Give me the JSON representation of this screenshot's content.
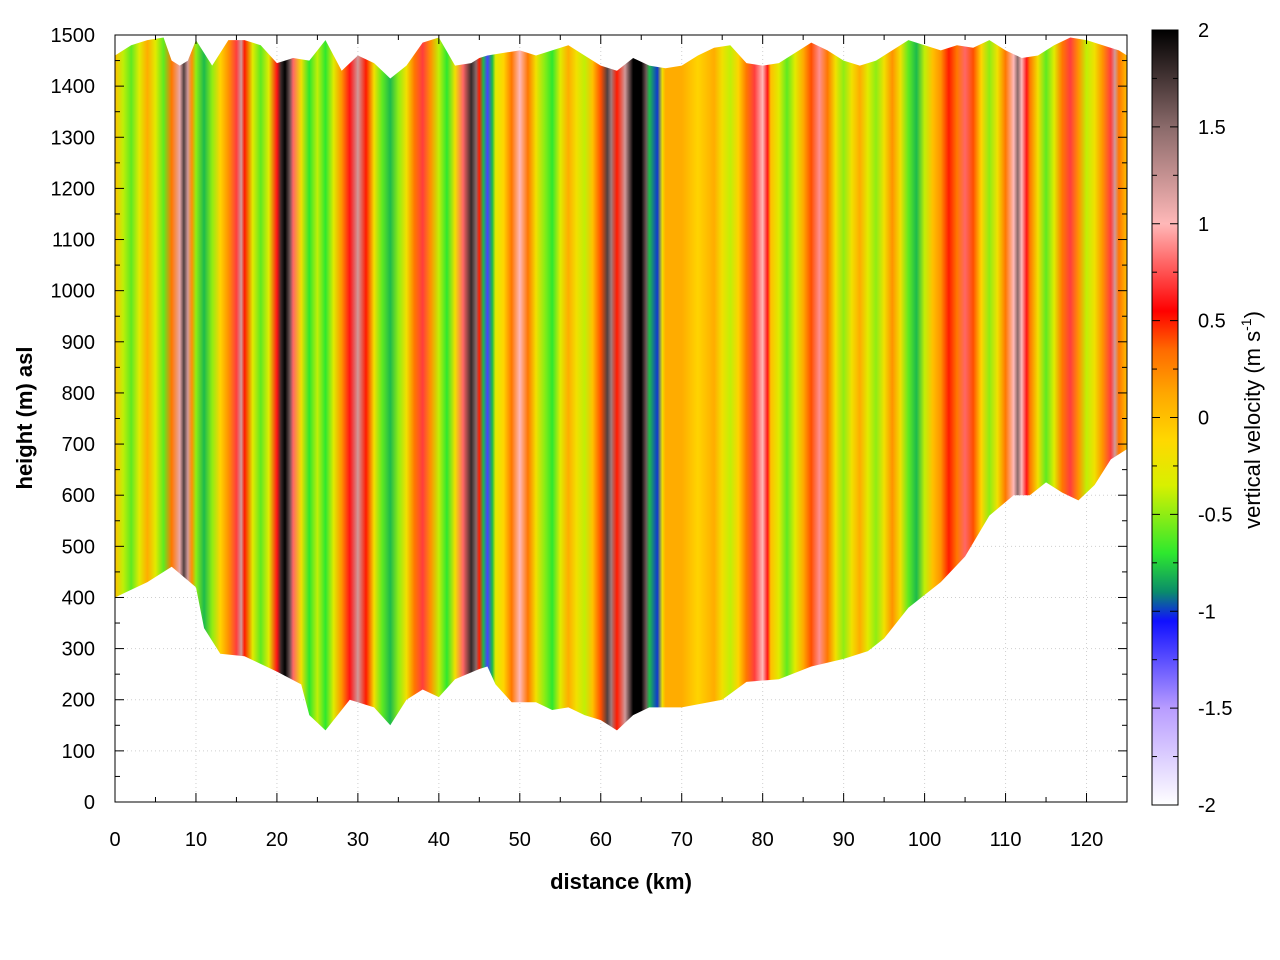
{
  "chart_data": {
    "type": "heatmap",
    "title": "",
    "xlabel": "distance (km)",
    "ylabel": "height (m) asl",
    "xlim": [
      0,
      125
    ],
    "ylim": [
      0,
      1500
    ],
    "x_ticks": [
      "0",
      "10",
      "20",
      "30",
      "40",
      "50",
      "60",
      "70",
      "80",
      "90",
      "100",
      "110",
      "120"
    ],
    "y_ticks": [
      "0",
      "100",
      "200",
      "300",
      "400",
      "500",
      "600",
      "700",
      "800",
      "900",
      "1000",
      "1100",
      "1200",
      "1300",
      "1400",
      "1500"
    ],
    "grid": true,
    "colorbar": {
      "label_main": "vertical velocity (m s",
      "label_sup": "-1",
      "label_close": ")",
      "range": [
        -2,
        2
      ],
      "ticks": [
        "-2",
        "-1.5",
        "-1",
        "-0.5",
        "0",
        "0.5",
        "1",
        "1.5",
        "2"
      ],
      "colors": [
        {
          "v": -2.0,
          "c": "#ffffff"
        },
        {
          "v": -1.5,
          "c": "#b89cff"
        },
        {
          "v": -1.05,
          "c": "#1010ff"
        },
        {
          "v": -0.9,
          "c": "#0a8c6a"
        },
        {
          "v": -0.7,
          "c": "#2ee82e"
        },
        {
          "v": -0.35,
          "c": "#d8f000"
        },
        {
          "v": -0.12,
          "c": "#ffd800"
        },
        {
          "v": 0.12,
          "c": "#ffa800"
        },
        {
          "v": 0.35,
          "c": "#ff6a00"
        },
        {
          "v": 0.55,
          "c": "#ff0000"
        },
        {
          "v": 1.0,
          "c": "#ffb8b8"
        },
        {
          "v": 1.5,
          "c": "#8a6a6a"
        },
        {
          "v": 2.0,
          "c": "#000000"
        }
      ]
    },
    "terrain_bottom": [
      [
        0,
        400
      ],
      [
        4,
        430
      ],
      [
        7,
        460
      ],
      [
        10,
        420
      ],
      [
        11,
        340
      ],
      [
        13,
        290
      ],
      [
        16,
        285
      ],
      [
        20,
        255
      ],
      [
        23,
        230
      ],
      [
        24,
        170
      ],
      [
        26,
        140
      ],
      [
        27,
        160
      ],
      [
        29,
        200
      ],
      [
        32,
        185
      ],
      [
        34,
        150
      ],
      [
        36,
        200
      ],
      [
        38,
        220
      ],
      [
        40,
        205
      ],
      [
        42,
        240
      ],
      [
        45,
        260
      ],
      [
        46,
        265
      ],
      [
        47,
        230
      ],
      [
        49,
        195
      ],
      [
        52,
        195
      ],
      [
        54,
        180
      ],
      [
        56,
        185
      ],
      [
        58,
        170
      ],
      [
        60,
        160
      ],
      [
        62,
        140
      ],
      [
        64,
        170
      ],
      [
        66,
        185
      ],
      [
        70,
        185
      ],
      [
        75,
        200
      ],
      [
        78,
        235
      ],
      [
        82,
        240
      ],
      [
        86,
        265
      ],
      [
        90,
        280
      ],
      [
        93,
        295
      ],
      [
        95,
        320
      ],
      [
        98,
        380
      ],
      [
        102,
        430
      ],
      [
        105,
        480
      ],
      [
        108,
        560
      ],
      [
        111,
        600
      ],
      [
        113,
        600
      ],
      [
        115,
        625
      ],
      [
        117,
        605
      ],
      [
        119,
        590
      ],
      [
        121,
        620
      ],
      [
        123,
        670
      ],
      [
        125,
        690
      ]
    ],
    "top_surface": [
      [
        0,
        1460
      ],
      [
        2,
        1480
      ],
      [
        4,
        1490
      ],
      [
        6,
        1495
      ],
      [
        7,
        1450
      ],
      [
        8,
        1440
      ],
      [
        9,
        1450
      ],
      [
        10,
        1490
      ],
      [
        12,
        1440
      ],
      [
        14,
        1490
      ],
      [
        16,
        1490
      ],
      [
        18,
        1480
      ],
      [
        20,
        1445
      ],
      [
        21,
        1450
      ],
      [
        22,
        1455
      ],
      [
        24,
        1450
      ],
      [
        26,
        1490
      ],
      [
        28,
        1430
      ],
      [
        30,
        1460
      ],
      [
        32,
        1445
      ],
      [
        34,
        1415
      ],
      [
        36,
        1440
      ],
      [
        38,
        1485
      ],
      [
        40,
        1495
      ],
      [
        42,
        1440
      ],
      [
        44,
        1445
      ],
      [
        45,
        1455
      ],
      [
        46,
        1460
      ],
      [
        48,
        1465
      ],
      [
        50,
        1470
      ],
      [
        52,
        1460
      ],
      [
        54,
        1470
      ],
      [
        56,
        1480
      ],
      [
        58,
        1460
      ],
      [
        60,
        1440
      ],
      [
        62,
        1430
      ],
      [
        64,
        1455
      ],
      [
        66,
        1440
      ],
      [
        68,
        1435
      ],
      [
        70,
        1440
      ],
      [
        72,
        1460
      ],
      [
        74,
        1475
      ],
      [
        76,
        1480
      ],
      [
        78,
        1445
      ],
      [
        80,
        1440
      ],
      [
        82,
        1445
      ],
      [
        84,
        1465
      ],
      [
        86,
        1485
      ],
      [
        88,
        1470
      ],
      [
        90,
        1450
      ],
      [
        92,
        1440
      ],
      [
        94,
        1450
      ],
      [
        96,
        1470
      ],
      [
        98,
        1490
      ],
      [
        100,
        1480
      ],
      [
        102,
        1470
      ],
      [
        104,
        1480
      ],
      [
        106,
        1475
      ],
      [
        108,
        1490
      ],
      [
        110,
        1470
      ],
      [
        112,
        1455
      ],
      [
        114,
        1460
      ],
      [
        116,
        1480
      ],
      [
        118,
        1495
      ],
      [
        120,
        1490
      ],
      [
        122,
        1480
      ],
      [
        124,
        1470
      ],
      [
        125,
        1460
      ]
    ],
    "velocity_profile": [
      [
        0,
        0.0
      ],
      [
        1,
        -0.4
      ],
      [
        2,
        -0.6
      ],
      [
        3,
        -0.3
      ],
      [
        4,
        0.1
      ],
      [
        5,
        -0.3
      ],
      [
        6,
        -0.6
      ],
      [
        7,
        0.3
      ],
      [
        8,
        1.1
      ],
      [
        8.5,
        1.7
      ],
      [
        9,
        1.2
      ],
      [
        9.5,
        0.2
      ],
      [
        10,
        -0.5
      ],
      [
        11,
        -0.8
      ],
      [
        12,
        -0.5
      ],
      [
        13,
        -0.1
      ],
      [
        14,
        0.2
      ],
      [
        15,
        0.7
      ],
      [
        15.6,
        1.2
      ],
      [
        16,
        0.5
      ],
      [
        17,
        -0.3
      ],
      [
        18,
        -0.6
      ],
      [
        19,
        -0.3
      ],
      [
        20,
        0.6
      ],
      [
        20.5,
        1.8
      ],
      [
        21,
        2.0
      ],
      [
        21.6,
        1.6
      ],
      [
        22,
        0.8
      ],
      [
        23,
        -0.2
      ],
      [
        24,
        -0.7
      ],
      [
        25,
        -0.4
      ],
      [
        26,
        -0.7
      ],
      [
        27,
        -0.3
      ],
      [
        28,
        0.2
      ],
      [
        29,
        0.6
      ],
      [
        30,
        1.2
      ],
      [
        31,
        0.5
      ],
      [
        32,
        -0.2
      ],
      [
        33,
        -0.6
      ],
      [
        34,
        -0.8
      ],
      [
        35,
        -0.5
      ],
      [
        36,
        -0.2
      ],
      [
        37,
        0.3
      ],
      [
        38,
        0.7
      ],
      [
        39,
        0.2
      ],
      [
        40,
        -0.4
      ],
      [
        41,
        -0.7
      ],
      [
        42,
        -0.2
      ],
      [
        43,
        0.8
      ],
      [
        44,
        1.8
      ],
      [
        44.6,
        1.5
      ],
      [
        45,
        0.5
      ],
      [
        45.5,
        -0.8
      ],
      [
        46,
        -1.2
      ],
      [
        46.6,
        -0.8
      ],
      [
        47,
        -0.3
      ],
      [
        48,
        -0.1
      ],
      [
        49,
        0.3
      ],
      [
        50,
        1.0
      ],
      [
        51,
        0.3
      ],
      [
        52,
        -0.2
      ],
      [
        53,
        -0.5
      ],
      [
        54,
        -0.7
      ],
      [
        55,
        -0.3
      ],
      [
        56,
        0.1
      ],
      [
        57,
        -0.2
      ],
      [
        58,
        -0.4
      ],
      [
        59,
        0.0
      ],
      [
        60,
        0.4
      ],
      [
        60.8,
        1.7
      ],
      [
        61.3,
        1.4
      ],
      [
        62,
        0.5
      ],
      [
        63,
        1.2
      ],
      [
        64,
        2.0
      ],
      [
        65,
        2.0
      ],
      [
        65.6,
        1.6
      ],
      [
        66,
        -0.8
      ],
      [
        67,
        -1.0
      ],
      [
        67.6,
        -0.2
      ],
      [
        68,
        0.1
      ],
      [
        70,
        0.1
      ],
      [
        72,
        -0.1
      ],
      [
        74,
        0.1
      ],
      [
        75,
        -0.2
      ],
      [
        76,
        -0.4
      ],
      [
        77,
        -0.1
      ],
      [
        78,
        0.3
      ],
      [
        79,
        0.7
      ],
      [
        80,
        1.0
      ],
      [
        80.6,
        0.6
      ],
      [
        81,
        0.0
      ],
      [
        82,
        -0.3
      ],
      [
        83,
        -0.6
      ],
      [
        84,
        -0.3
      ],
      [
        85,
        0.1
      ],
      [
        86,
        0.4
      ],
      [
        87,
        0.9
      ],
      [
        88,
        0.3
      ],
      [
        89,
        -0.2
      ],
      [
        90,
        -0.5
      ],
      [
        91,
        -0.2
      ],
      [
        92,
        0.1
      ],
      [
        93,
        -0.3
      ],
      [
        94,
        -0.5
      ],
      [
        95,
        -0.2
      ],
      [
        96,
        0.2
      ],
      [
        97,
        -0.2
      ],
      [
        98,
        -0.6
      ],
      [
        99,
        -0.8
      ],
      [
        100,
        -0.4
      ],
      [
        101,
        0.0
      ],
      [
        102,
        0.2
      ],
      [
        103,
        0.5
      ],
      [
        104,
        0.3
      ],
      [
        105,
        0.8
      ],
      [
        106,
        0.4
      ],
      [
        107,
        -0.1
      ],
      [
        108,
        -0.5
      ],
      [
        109,
        -0.2
      ],
      [
        110,
        0.3
      ],
      [
        111,
        1.0
      ],
      [
        111.5,
        1.5
      ],
      [
        112,
        1.0
      ],
      [
        112.6,
        0.6
      ],
      [
        113,
        0.3
      ],
      [
        114,
        -0.2
      ],
      [
        115,
        -0.6
      ],
      [
        116,
        -0.3
      ],
      [
        117,
        0.3
      ],
      [
        118,
        0.7
      ],
      [
        119,
        0.2
      ],
      [
        120,
        -0.4
      ],
      [
        121,
        -0.2
      ],
      [
        122,
        0.2
      ],
      [
        123,
        0.7
      ],
      [
        123.5,
        1.2
      ],
      [
        124,
        0.3
      ],
      [
        125,
        0.0
      ]
    ]
  }
}
